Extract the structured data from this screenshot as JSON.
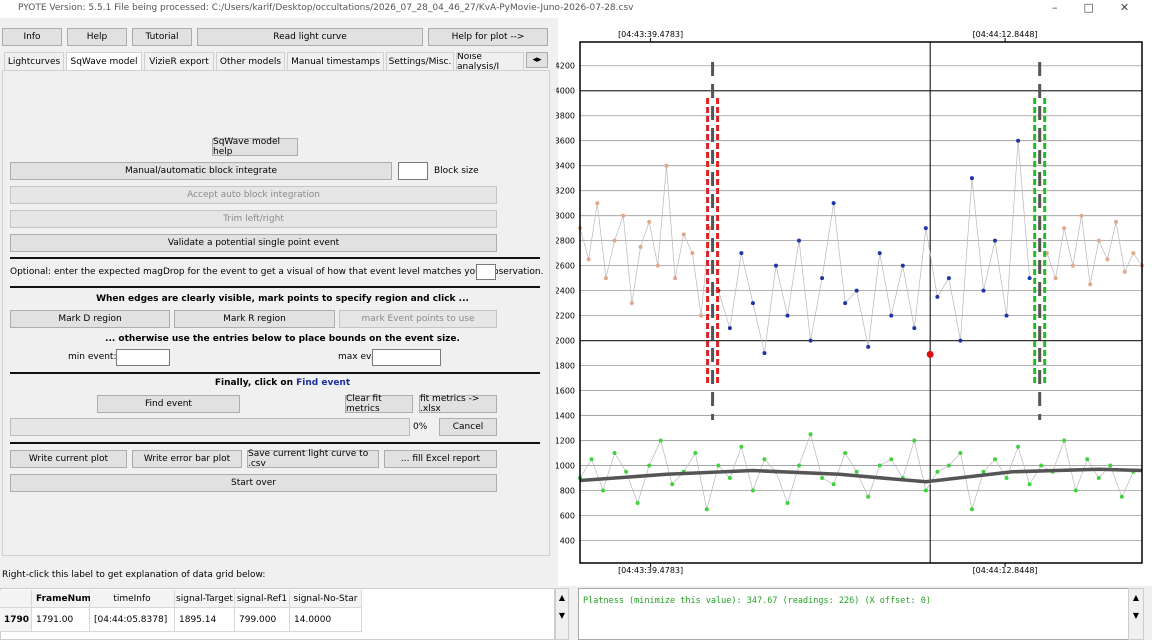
{
  "window": {
    "title": "PYOTE Version: 5.5.1  File being processed: C:/Users/karlf/Desktop/occultations/2026_07_28_04_46_27/KvA-PyMovie-Juno-2026-07-28.csv"
  },
  "toolbar": [
    "Info",
    "Help",
    "Tutorial",
    "Read light curve",
    "Help for plot -->"
  ],
  "tabs": [
    "Lightcurves",
    "SqWave model",
    "VizieR export",
    "Other models",
    "Manual timestamps",
    "Settings/Misc.",
    "Noise analysis/I"
  ],
  "panel": {
    "model_help": "SqWave model help",
    "block_integrate": "Manual/automatic block integrate",
    "block_size": "Block size",
    "accept_block": "Accept auto block integration",
    "trim": "Trim left/right",
    "validate": "Validate a potential single point event",
    "magdrop_prompt": "Optional: enter the expected magDrop for the event to get a visual of how that event level matches your observation.",
    "edges_heading": "When edges are clearly visible, mark points to specify region and click ...",
    "mark_d": "Mark D region",
    "mark_r": "Mark R region",
    "mark_event": "mark Event points to use",
    "otherwise_heading": "... otherwise use the entries below to place bounds on the event size.",
    "min_event": "min event:",
    "max_event": "max event:",
    "finally_text": "Finally, click on",
    "finally_link": "Find event",
    "find_event": "Find event",
    "clear_fit": "Clear fit metrics",
    "fit_xlsx": "fit metrics -> .xlsx",
    "progress": "0%",
    "cancel": "Cancel",
    "write_plot": "Write current plot",
    "write_error": "Write error bar plot",
    "save_csv": "Save current light curve to .csv",
    "fill_excel": "... fill Excel report",
    "start_over": "Start over"
  },
  "grid_label": "Right-click this label to get explanation of data grid below:",
  "table": {
    "columns": [
      "FrameNum",
      "timeInfo",
      "signal-Target",
      "signal-Ref1",
      "signal-No-Star"
    ],
    "row_headers": [
      "1790"
    ],
    "rows": [
      [
        "1791.00",
        "[04:44:05.8378]",
        "1895.14",
        "799.000",
        "14.0000"
      ]
    ]
  },
  "console": "Platness (minimize this value): 347.67 (readings: 226) (X offset: 0)",
  "chart_data": {
    "type": "scatter",
    "xlim": [
      0,
      390
    ],
    "ylim": [
      220,
      4390
    ],
    "xticks": [
      {
        "value": 49,
        "label": "[04:43:39.4783]"
      },
      {
        "value": 295,
        "label": "[04:44:12.8448]"
      }
    ],
    "yticks": [
      400,
      600,
      800,
      1000,
      1200,
      1400,
      1600,
      1800,
      2000,
      2200,
      2400,
      2600,
      2800,
      3000,
      3200,
      3400,
      3600,
      3800,
      4000,
      4200
    ],
    "grid": true,
    "series": [
      {
        "color": "#e3a88a",
        "x": [
          0,
          6,
          12,
          18,
          24,
          30,
          36,
          42,
          48,
          54,
          60,
          66,
          72,
          78,
          84,
          90
        ],
        "values": [
          2900,
          2650,
          3100,
          2500,
          2800,
          3000,
          2300,
          2750,
          2950,
          2600,
          3400,
          2500,
          2850,
          2700,
          2200,
          2900
        ]
      },
      {
        "color": "#1f35a8",
        "x": [
          96,
          104,
          112,
          120,
          128,
          136,
          144,
          152,
          160,
          168,
          176,
          184,
          192,
          200,
          208,
          216,
          224,
          232,
          240,
          248,
          256,
          264,
          272,
          280,
          288,
          296,
          304,
          312
        ],
        "values": [
          2400,
          2100,
          2700,
          2300,
          1900,
          2600,
          2200,
          2800,
          2000,
          2500,
          3100,
          2300,
          2400,
          1950,
          2700,
          2200,
          2600,
          2100,
          2900,
          2350,
          2500,
          2000,
          3300,
          2400,
          2800,
          2200,
          3600,
          2500
        ]
      },
      {
        "color": "#e3a88a",
        "x": [
          324,
          330,
          336,
          342,
          348,
          354,
          360,
          366,
          372,
          378,
          384,
          390
        ],
        "values": [
          2700,
          2500,
          2900,
          2600,
          3000,
          2450,
          2800,
          2650,
          2950,
          2550,
          2700,
          2600
        ]
      },
      {
        "color": "#3fd23f",
        "x": [
          0,
          8,
          16,
          24,
          32,
          40,
          48,
          56,
          64,
          72,
          80,
          88,
          96,
          104,
          112,
          120,
          128,
          136,
          144,
          152,
          160,
          168,
          176,
          184,
          192,
          200,
          208,
          216,
          224,
          232,
          240,
          248,
          256,
          264,
          272,
          280,
          288,
          296,
          304,
          312,
          320,
          328,
          336,
          344,
          352,
          360,
          368,
          376,
          384
        ],
        "values": [
          900,
          1050,
          800,
          1100,
          950,
          700,
          1000,
          1200,
          850,
          950,
          1100,
          650,
          1000,
          900,
          1150,
          800,
          1050,
          950,
          700,
          1000,
          1250,
          900,
          850,
          1100,
          950,
          750,
          1000,
          1050,
          900,
          1200,
          800,
          950,
          1000,
          1100,
          650,
          950,
          1050,
          900,
          1150,
          850,
          1000,
          950,
          1200,
          800,
          1050,
          900,
          1000,
          750,
          950
        ]
      }
    ],
    "smooth": {
      "color": "#555555",
      "x": [
        0,
        60,
        120,
        180,
        240,
        300,
        360,
        390
      ],
      "values": [
        880,
        930,
        960,
        930,
        870,
        950,
        970,
        960
      ]
    },
    "edges": [
      {
        "x": 92,
        "color": "#dd2222"
      },
      {
        "x": 319,
        "color": "#22bb22"
      }
    ],
    "cursor_x": 243,
    "selected_point": {
      "x": 243,
      "value": 1890,
      "color": "#dd1111"
    }
  }
}
